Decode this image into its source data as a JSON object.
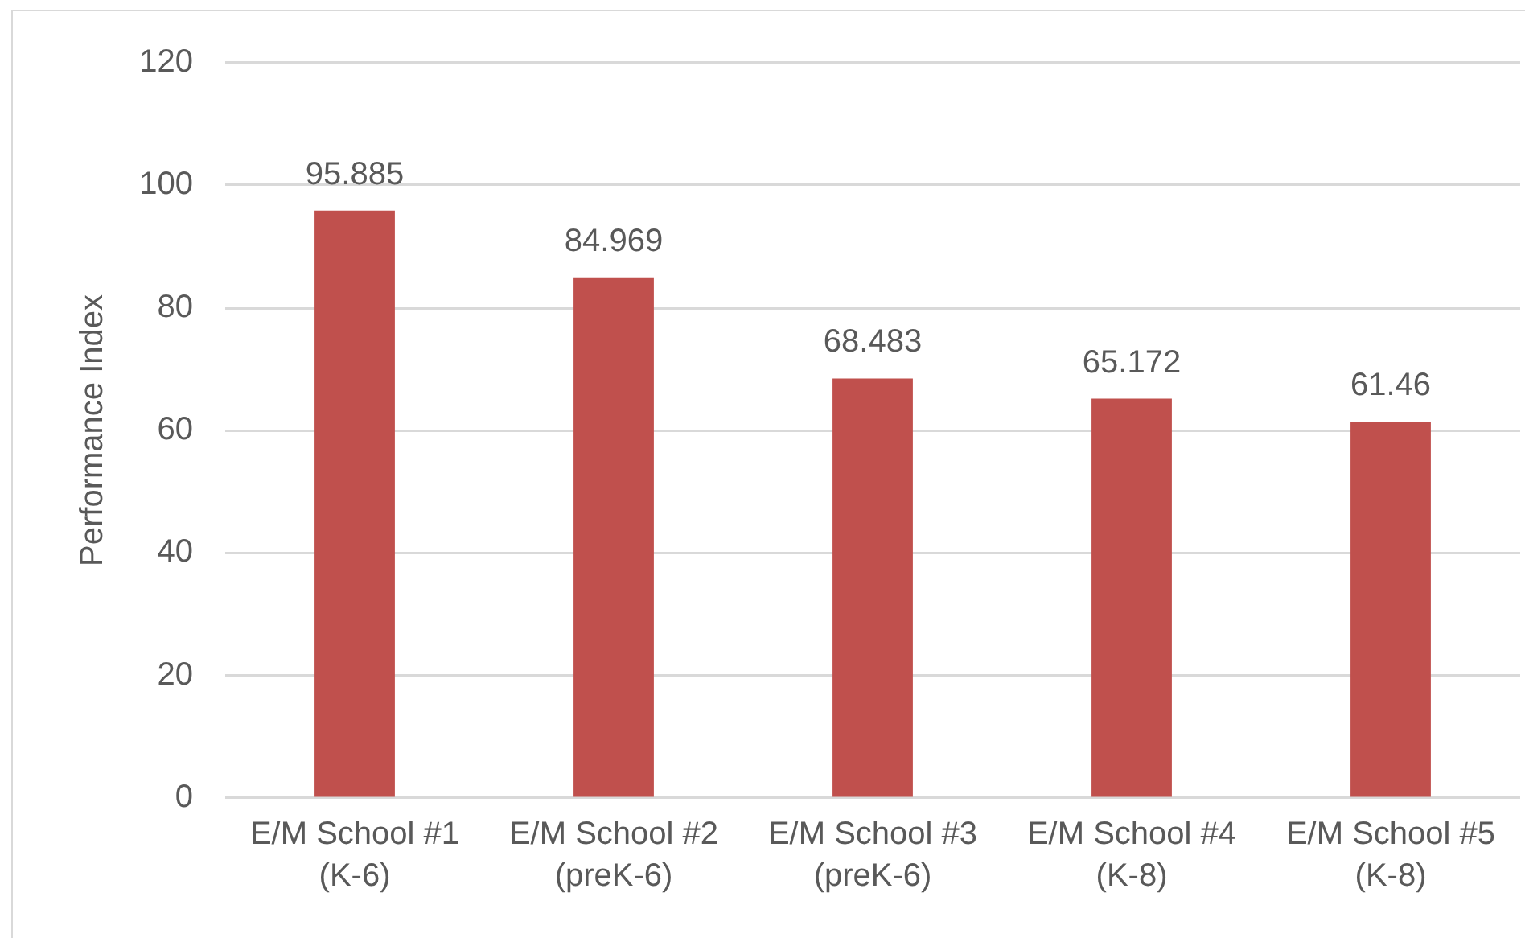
{
  "chart_data": {
    "type": "bar",
    "categories": [
      "E/M School #1 (K-6)",
      "E/M School #2 (preK-6)",
      "E/M School #3 (preK-6)",
      "E/M School #4 (K-8)",
      "E/M School #5 (K-8)"
    ],
    "values": [
      95.885,
      84.969,
      68.483,
      65.172,
      61.46
    ],
    "color": "#c0504d",
    "ylabel": "Performance Index",
    "ylim": [
      0,
      120
    ],
    "yticks": [
      0,
      20,
      40,
      60,
      80,
      100,
      120
    ],
    "grid": "y",
    "data_labels": true
  }
}
